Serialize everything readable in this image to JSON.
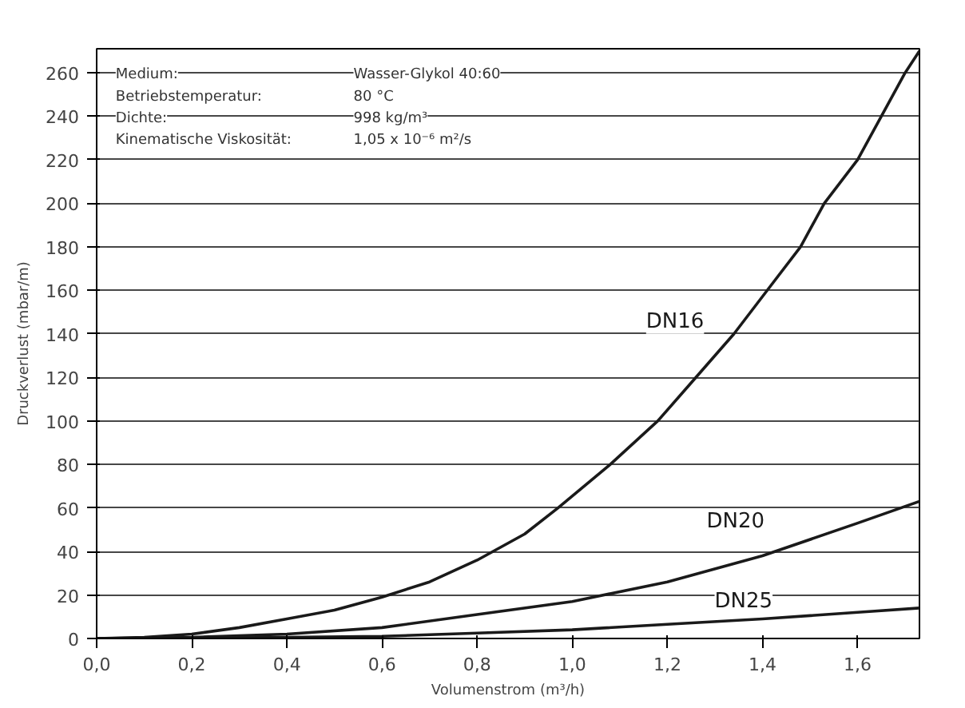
{
  "chart_data": {
    "type": "line",
    "xlabel": "Volumenstrom (m³/h)",
    "ylabel": "Druckverlust (mbar/m)",
    "xlim": [
      0,
      1.73
    ],
    "ylim": [
      0,
      271
    ],
    "xticks": [
      {
        "value": 0,
        "label": "0,0"
      },
      {
        "value": 0.2,
        "label": "0,2"
      },
      {
        "value": 0.4,
        "label": "0,4"
      },
      {
        "value": 0.6,
        "label": "0,6"
      },
      {
        "value": 0.8,
        "label": "0,8"
      },
      {
        "value": 1.0,
        "label": "1,0"
      },
      {
        "value": 1.2,
        "label": "1,2"
      },
      {
        "value": 1.4,
        "label": "1,4"
      },
      {
        "value": 1.6,
        "label": "1,6"
      }
    ],
    "yticks": [
      0,
      20,
      40,
      60,
      80,
      100,
      120,
      140,
      160,
      180,
      200,
      220,
      240,
      260
    ],
    "grid": "y",
    "marker": "none",
    "line_style": "solid",
    "annotations": [
      "Medium:",
      "Wasser-Glykol 40:60",
      "Betriebstemperatur:",
      "80 °C",
      "Dichte:",
      "998 kg/m³",
      "Kinematische Viskosität:",
      "1,05 x 10⁻⁶ m²/s"
    ],
    "series": [
      {
        "name": "DN16",
        "color": "#1a1a1a",
        "x": [
          0,
          0.1,
          0.2,
          0.3,
          0.4,
          0.5,
          0.6,
          0.7,
          0.8,
          0.9,
          0.97,
          1.08,
          1.18,
          1.26,
          1.34,
          1.41,
          1.48,
          1.53,
          1.6,
          1.65,
          1.7,
          1.73
        ],
        "values": [
          0,
          0.5,
          2,
          5,
          9,
          13,
          19,
          26,
          36,
          48,
          60,
          80,
          100,
          120,
          140,
          160,
          180,
          200,
          220,
          240,
          260,
          270
        ]
      },
      {
        "name": "DN20",
        "color": "#1a1a1a",
        "x": [
          0,
          0.2,
          0.4,
          0.6,
          0.8,
          1.0,
          1.2,
          1.4,
          1.6,
          1.73
        ],
        "values": [
          0,
          0.5,
          2,
          5,
          11,
          17,
          26,
          38,
          53,
          63
        ]
      },
      {
        "name": "DN25",
        "color": "#1a1a1a",
        "x": [
          0,
          0.2,
          0.4,
          0.6,
          0.8,
          1.0,
          1.2,
          1.4,
          1.6,
          1.73
        ],
        "values": [
          0,
          0.2,
          0.5,
          1,
          2.5,
          4,
          6.5,
          9,
          12,
          14
        ]
      }
    ]
  }
}
